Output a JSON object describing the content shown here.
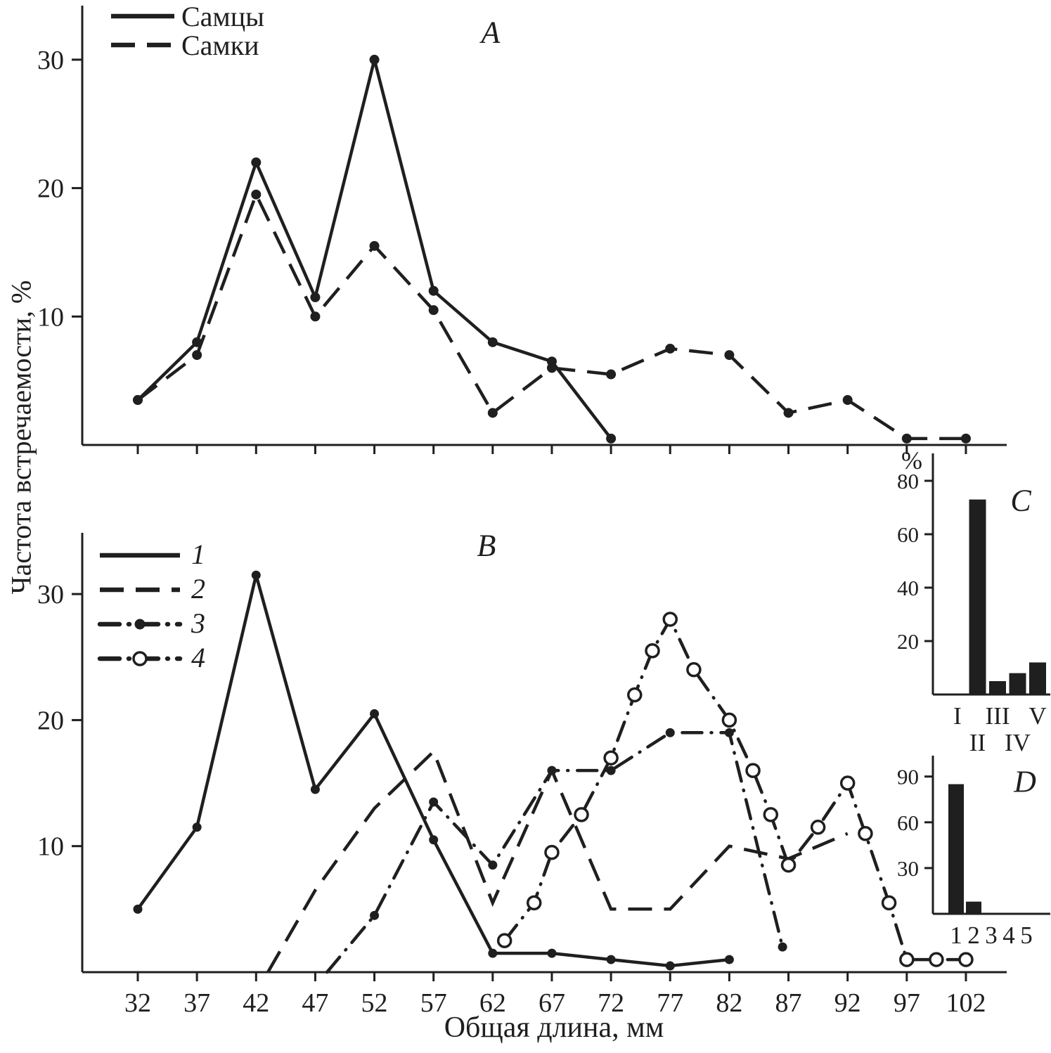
{
  "figure": {
    "y_axis_title": "Частота встречаемости, %",
    "x_axis_title": "Общая длина, мм"
  },
  "chart_data": [
    {
      "type": "line",
      "panel_label": "A",
      "x_ticks": [
        32,
        37,
        42,
        47,
        52,
        57,
        62,
        67,
        72,
        77,
        82,
        87,
        92,
        97,
        102
      ],
      "y_ticks": [
        10,
        20,
        30
      ],
      "xlim": [
        27,
        105
      ],
      "ylim": [
        0,
        34
      ],
      "legend": [
        {
          "name": "Самцы",
          "line": "solid",
          "marker": "none"
        },
        {
          "name": "Самки",
          "line": "dashed",
          "marker": "none"
        }
      ],
      "series": [
        {
          "name": "Самцы",
          "line": "solid",
          "marker": "filled",
          "points": [
            [
              32,
              3.5
            ],
            [
              37,
              8
            ],
            [
              42,
              22
            ],
            [
              47,
              11.5
            ],
            [
              52,
              30
            ],
            [
              57,
              12
            ],
            [
              62,
              8
            ],
            [
              67,
              6.5
            ],
            [
              72,
              0.5
            ]
          ]
        },
        {
          "name": "Самки",
          "line": "dashed",
          "marker": "filled",
          "points": [
            [
              32,
              3.5
            ],
            [
              37,
              7
            ],
            [
              42,
              19.5
            ],
            [
              47,
              10
            ],
            [
              52,
              15.5
            ],
            [
              57,
              10.5
            ],
            [
              62,
              2.5
            ],
            [
              67,
              6
            ],
            [
              72,
              5.5
            ],
            [
              77,
              7.5
            ],
            [
              82,
              7
            ],
            [
              87,
              2.5
            ],
            [
              92,
              3.5
            ],
            [
              97,
              0.5
            ],
            [
              102,
              0.5
            ]
          ]
        }
      ]
    },
    {
      "type": "line",
      "panel_label": "B",
      "x_ticks": [
        32,
        37,
        42,
        47,
        52,
        57,
        62,
        67,
        72,
        77,
        82,
        87,
        92,
        97,
        102
      ],
      "y_ticks": [
        10,
        20,
        30
      ],
      "xlim": [
        27,
        105
      ],
      "ylim": [
        0,
        34
      ],
      "legend": [
        {
          "name": "1",
          "line": "solid",
          "marker": "none"
        },
        {
          "name": "2",
          "line": "dashed",
          "marker": "none"
        },
        {
          "name": "3",
          "line": "dashdot",
          "marker": "filled"
        },
        {
          "name": "4",
          "line": "dashdot",
          "marker": "open"
        }
      ],
      "series": [
        {
          "name": "1",
          "line": "solid",
          "marker": "filled",
          "points": [
            [
              32,
              5
            ],
            [
              37,
              11.5
            ],
            [
              42,
              31.5
            ],
            [
              47,
              14.5
            ],
            [
              52,
              20.5
            ],
            [
              57,
              10.5
            ],
            [
              62,
              1.5
            ],
            [
              67,
              1.5
            ],
            [
              72,
              1
            ],
            [
              77,
              0.5
            ],
            [
              82,
              1
            ]
          ]
        },
        {
          "name": "2",
          "line": "dashed",
          "marker": "none",
          "points": [
            [
              43,
              0
            ],
            [
              47,
              6.5
            ],
            [
              52,
              13
            ],
            [
              57,
              17.5
            ],
            [
              62,
              5.5
            ],
            [
              67,
              16
            ],
            [
              72,
              5
            ],
            [
              77,
              5
            ],
            [
              82,
              10
            ],
            [
              87,
              9
            ],
            [
              92,
              11
            ]
          ]
        },
        {
          "name": "3",
          "line": "dashdot",
          "marker": "filled",
          "points": [
            [
              48,
              0
            ],
            [
              52,
              4.5
            ],
            [
              57,
              13.5
            ],
            [
              62,
              8.5
            ],
            [
              67,
              16
            ],
            [
              72,
              16
            ],
            [
              77,
              19
            ],
            [
              82,
              19
            ],
            [
              86.5,
              2
            ]
          ]
        },
        {
          "name": "4",
          "line": "dashdot",
          "marker": "open",
          "points": [
            [
              63,
              2.5
            ],
            [
              65.5,
              5.5
            ],
            [
              67,
              9.5
            ],
            [
              69.5,
              12.5
            ],
            [
              72,
              17
            ],
            [
              74,
              22
            ],
            [
              75.5,
              25.5
            ],
            [
              77,
              28
            ],
            [
              79,
              24
            ],
            [
              82,
              20
            ],
            [
              84,
              16
            ],
            [
              85.5,
              12.5
            ],
            [
              87,
              8.5
            ],
            [
              89.5,
              11.5
            ],
            [
              92,
              15
            ],
            [
              93.5,
              11
            ],
            [
              95.5,
              5.5
            ],
            [
              97,
              1
            ],
            [
              99.5,
              1
            ],
            [
              102,
              1
            ]
          ]
        }
      ]
    },
    {
      "type": "bar",
      "panel_label": "C",
      "ylabel": "%",
      "y_ticks": [
        20,
        40,
        60,
        80
      ],
      "ylim": [
        0,
        88
      ],
      "categories": [
        "I",
        "II",
        "III",
        "IV",
        "V"
      ],
      "values": [
        0,
        73,
        5,
        8,
        12
      ]
    },
    {
      "type": "bar",
      "panel_label": "D",
      "ylabel": "",
      "y_ticks": [
        30,
        60,
        90
      ],
      "ylim": [
        0,
        98
      ],
      "categories": [
        "1",
        "2",
        "3",
        "4",
        "5"
      ],
      "values": [
        85,
        8,
        0,
        0,
        0
      ]
    }
  ]
}
